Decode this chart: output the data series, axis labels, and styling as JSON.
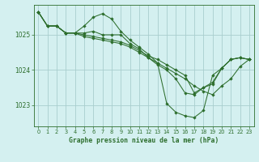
{
  "title": "Graphe pression niveau de la mer (hPa)",
  "background_color": "#d4f0f0",
  "grid_color": "#a8cece",
  "line_color": "#2d6e2d",
  "marker": "D",
  "marker_size": 2.2,
  "xlim": [
    -0.5,
    23.5
  ],
  "ylim": [
    1022.4,
    1025.85
  ],
  "yticks": [
    1023,
    1024,
    1025
  ],
  "xticks": [
    0,
    1,
    2,
    3,
    4,
    5,
    6,
    7,
    8,
    9,
    10,
    11,
    12,
    13,
    14,
    15,
    16,
    17,
    18,
    19,
    20,
    21,
    22,
    23
  ],
  "lines": [
    [
      1025.65,
      1025.25,
      1025.25,
      1025.05,
      1025.05,
      1025.25,
      1025.5,
      1025.6,
      1025.45,
      1025.1,
      1024.85,
      1024.65,
      1024.45,
      1024.2,
      1023.05,
      1022.8,
      1022.7,
      1022.65,
      1022.85,
      1023.85,
      1024.05,
      1024.3,
      1024.35,
      1024.3
    ],
    [
      1025.65,
      1025.25,
      1025.25,
      1025.05,
      1025.05,
      1025.05,
      1025.1,
      1025.0,
      1025.0,
      1025.0,
      1024.75,
      1024.6,
      1024.35,
      1024.15,
      1024.0,
      1023.75,
      1023.35,
      1023.3,
      1023.5,
      1023.6,
      1024.05,
      1024.3,
      1024.35,
      1024.3
    ],
    [
      1025.65,
      1025.25,
      1025.25,
      1025.05,
      1025.05,
      1025.0,
      1024.95,
      1024.9,
      1024.85,
      1024.8,
      1024.7,
      1024.55,
      1024.4,
      1024.3,
      1024.15,
      1024.0,
      1023.85,
      1023.35,
      1023.5,
      1023.65,
      1024.05,
      1024.3,
      1024.35,
      1024.3
    ],
    [
      1025.65,
      1025.25,
      1025.25,
      1025.05,
      1025.05,
      1024.95,
      1024.9,
      1024.85,
      1024.8,
      1024.75,
      1024.65,
      1024.5,
      1024.35,
      1024.2,
      1024.05,
      1023.9,
      1023.75,
      1023.55,
      1023.4,
      1023.3,
      1023.55,
      1023.75,
      1024.1,
      1024.3
    ]
  ]
}
